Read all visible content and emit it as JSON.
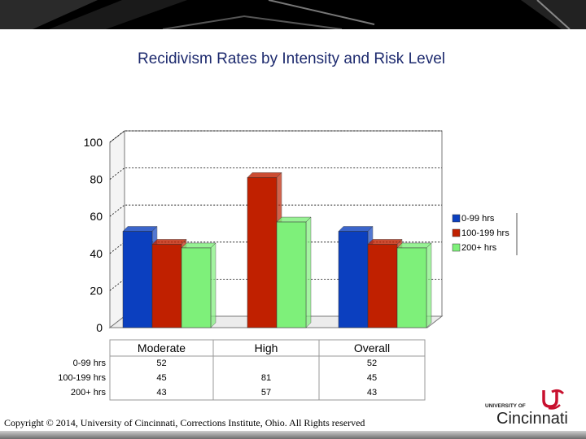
{
  "colors": {
    "series": [
      "#0b3fbf",
      "#c02000",
      "#7ef07a"
    ],
    "title": "#1d2a6e",
    "logo_red": "#c8102e"
  },
  "chart_data": {
    "type": "bar",
    "title": "Recidivism Rates by Intensity and Risk Level",
    "categories": [
      "Moderate",
      "High",
      "Overall"
    ],
    "series": [
      {
        "name": "0-99 hrs",
        "values": [
          52,
          null,
          52
        ]
      },
      {
        "name": "100-199 hrs",
        "values": [
          45,
          81,
          45
        ]
      },
      {
        "name": "200+ hrs",
        "values": [
          43,
          57,
          43
        ]
      }
    ],
    "legend_labels": [
      "0-99 hrs",
      "100-199 hrs",
      "200+ hrs"
    ],
    "table_row_labels": [
      "0-99 hrs",
      "100-199 hrs",
      "200+ hrs"
    ],
    "ylim": [
      0,
      100
    ],
    "yticks": [
      0,
      20,
      40,
      60,
      80,
      100
    ],
    "gridlines": [
      20,
      40,
      60,
      80,
      100
    ],
    "legend_position": "right"
  },
  "footer": {
    "copyright": "Copyright © 2014, University of Cincinnati, Corrections Institute, Ohio. All Rights reserved"
  },
  "logo": {
    "university_of": "UNIVERSITY OF",
    "name": "Cincinnati"
  }
}
